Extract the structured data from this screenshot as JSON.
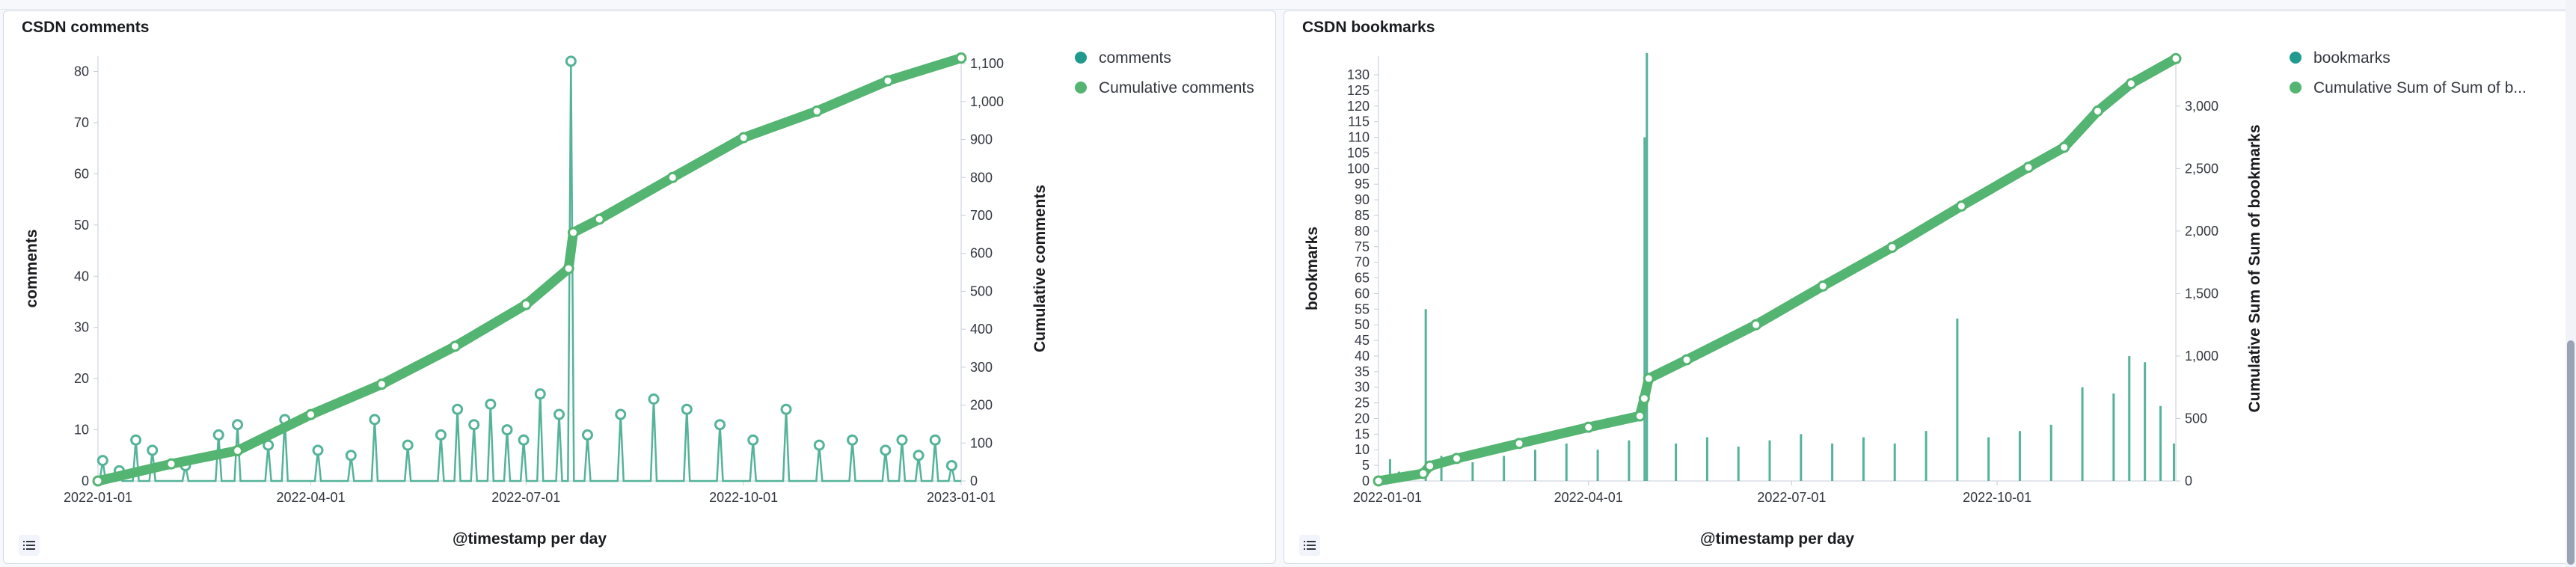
{
  "panels": [
    {
      "title": "CSDN comments",
      "legend": [
        {
          "label": "comments",
          "color": "#209a8f"
        },
        {
          "label": "Cumulative comments",
          "color": "#54b471"
        }
      ]
    },
    {
      "title": "CSDN bookmarks",
      "legend": [
        {
          "label": "bookmarks",
          "color": "#209a8f"
        },
        {
          "label": "Cumulative Sum of Sum of b...",
          "color": "#54b471"
        }
      ]
    }
  ],
  "icons": {
    "legend_toggle": "list-icon"
  },
  "colors": {
    "series_primary": "#54b399",
    "series_cumulative": "#54b471",
    "legend_primary": "#209a8f"
  },
  "chart_data": [
    {
      "type": "line",
      "title": "CSDN comments",
      "xlabel": "@timestamp per day",
      "ylabel": "comments",
      "y2label": "Cumulative comments",
      "x_ticks": [
        "2022-01-01",
        "2022-04-01",
        "2022-07-01",
        "2022-10-01",
        "2023-01-01"
      ],
      "x_range": [
        "2022-01-01",
        "2023-01-01"
      ],
      "y_ticks": [
        "0",
        "10",
        "20",
        "30",
        "40",
        "50",
        "60",
        "70",
        "80"
      ],
      "ylim": [
        0,
        83
      ],
      "y2_ticks": [
        "0",
        "100",
        "200",
        "300",
        "400",
        "500",
        "600",
        "700",
        "800",
        "900",
        "1,000",
        "1,100"
      ],
      "y2lim": [
        0,
        1120
      ],
      "grid": false,
      "legend_position": "right",
      "series": [
        {
          "name": "comments",
          "axis": "left",
          "style": "line-markers",
          "points": [
            [
              "2022-01-03",
              4
            ],
            [
              "2022-01-10",
              2
            ],
            [
              "2022-01-17",
              8
            ],
            [
              "2022-01-24",
              6
            ],
            [
              "2022-02-07",
              3
            ],
            [
              "2022-02-21",
              9
            ],
            [
              "2022-03-01",
              11
            ],
            [
              "2022-03-14",
              7
            ],
            [
              "2022-03-21",
              12
            ],
            [
              "2022-04-04",
              6
            ],
            [
              "2022-04-18",
              5
            ],
            [
              "2022-04-28",
              12
            ],
            [
              "2022-05-12",
              7
            ],
            [
              "2022-05-26",
              9
            ],
            [
              "2022-06-02",
              14
            ],
            [
              "2022-06-09",
              11
            ],
            [
              "2022-06-16",
              15
            ],
            [
              "2022-06-23",
              10
            ],
            [
              "2022-06-30",
              8
            ],
            [
              "2022-07-07",
              17
            ],
            [
              "2022-07-15",
              13
            ],
            [
              "2022-07-20",
              82
            ],
            [
              "2022-07-27",
              9
            ],
            [
              "2022-08-10",
              13
            ],
            [
              "2022-08-24",
              16
            ],
            [
              "2022-09-07",
              14
            ],
            [
              "2022-09-21",
              11
            ],
            [
              "2022-10-05",
              8
            ],
            [
              "2022-10-19",
              14
            ],
            [
              "2022-11-02",
              7
            ],
            [
              "2022-11-16",
              8
            ],
            [
              "2022-11-30",
              6
            ],
            [
              "2022-12-07",
              8
            ],
            [
              "2022-12-14",
              5
            ],
            [
              "2022-12-21",
              8
            ],
            [
              "2022-12-28",
              3
            ]
          ]
        },
        {
          "name": "Cumulative comments",
          "axis": "right",
          "style": "thick-line-markers",
          "points": [
            [
              "2022-01-01",
              0
            ],
            [
              "2022-02-01",
              45
            ],
            [
              "2022-03-01",
              80
            ],
            [
              "2022-04-01",
              175
            ],
            [
              "2022-05-01",
              255
            ],
            [
              "2022-06-01",
              355
            ],
            [
              "2022-07-01",
              465
            ],
            [
              "2022-07-19",
              560
            ],
            [
              "2022-07-21",
              655
            ],
            [
              "2022-08-01",
              690
            ],
            [
              "2022-09-01",
              800
            ],
            [
              "2022-10-01",
              905
            ],
            [
              "2022-11-01",
              975
            ],
            [
              "2022-12-01",
              1055
            ],
            [
              "2023-01-01",
              1115
            ]
          ]
        }
      ]
    },
    {
      "type": "bar",
      "title": "CSDN bookmarks",
      "xlabel": "@timestamp per day",
      "ylabel": "bookmarks",
      "y2label": "Cumulative Sum of Sum of bookmarks",
      "x_ticks": [
        "2022-01-01",
        "2022-04-01",
        "2022-07-01",
        "2022-10-01"
      ],
      "x_range": [
        "2021-12-28",
        "2022-12-20"
      ],
      "y_ticks": [
        "0",
        "5",
        "10",
        "15",
        "20",
        "25",
        "30",
        "35",
        "40",
        "45",
        "50",
        "55",
        "60",
        "65",
        "70",
        "75",
        "80",
        "85",
        "90",
        "95",
        "100",
        "105",
        "110",
        "115",
        "120",
        "125",
        "130"
      ],
      "ylim": [
        0,
        136
      ],
      "y2_ticks": [
        "0",
        "500",
        "1,000",
        "1,500",
        "2,000",
        "2,500",
        "3,000"
      ],
      "y2lim": [
        0,
        3400
      ],
      "grid": false,
      "legend_position": "right",
      "series": [
        {
          "name": "bookmarks",
          "axis": "left",
          "style": "bars",
          "points": [
            [
              "2022-01-02",
              7
            ],
            [
              "2022-01-06",
              3
            ],
            [
              "2022-01-18",
              55
            ],
            [
              "2022-01-25",
              8
            ],
            [
              "2022-02-08",
              6
            ],
            [
              "2022-02-22",
              8
            ],
            [
              "2022-03-08",
              10
            ],
            [
              "2022-03-22",
              12
            ],
            [
              "2022-04-05",
              10
            ],
            [
              "2022-04-19",
              13
            ],
            [
              "2022-04-26",
              110
            ],
            [
              "2022-04-27",
              137
            ],
            [
              "2022-05-10",
              12
            ],
            [
              "2022-05-24",
              14
            ],
            [
              "2022-06-07",
              11
            ],
            [
              "2022-06-21",
              13
            ],
            [
              "2022-07-05",
              15
            ],
            [
              "2022-07-19",
              12
            ],
            [
              "2022-08-02",
              14
            ],
            [
              "2022-08-16",
              12
            ],
            [
              "2022-08-30",
              16
            ],
            [
              "2022-09-13",
              52
            ],
            [
              "2022-09-27",
              14
            ],
            [
              "2022-10-11",
              16
            ],
            [
              "2022-10-25",
              18
            ],
            [
              "2022-11-08",
              30
            ],
            [
              "2022-11-22",
              28
            ],
            [
              "2022-11-29",
              40
            ],
            [
              "2022-12-06",
              38
            ],
            [
              "2022-12-13",
              24
            ],
            [
              "2022-12-19",
              12
            ]
          ]
        },
        {
          "name": "Cumulative Sum of Sum of bookmarks",
          "axis": "right",
          "style": "thick-line-markers",
          "points": [
            [
              "2021-12-28",
              0
            ],
            [
              "2022-01-17",
              60
            ],
            [
              "2022-01-20",
              120
            ],
            [
              "2022-02-01",
              180
            ],
            [
              "2022-03-01",
              300
            ],
            [
              "2022-04-01",
              430
            ],
            [
              "2022-04-24",
              520
            ],
            [
              "2022-04-26",
              660
            ],
            [
              "2022-04-28",
              820
            ],
            [
              "2022-05-15",
              970
            ],
            [
              "2022-06-15",
              1250
            ],
            [
              "2022-07-15",
              1560
            ],
            [
              "2022-08-15",
              1870
            ],
            [
              "2022-09-15",
              2200
            ],
            [
              "2022-10-15",
              2510
            ],
            [
              "2022-10-31",
              2670
            ],
            [
              "2022-11-15",
              2960
            ],
            [
              "2022-11-30",
              3180
            ],
            [
              "2022-12-20",
              3380
            ]
          ]
        }
      ]
    }
  ]
}
